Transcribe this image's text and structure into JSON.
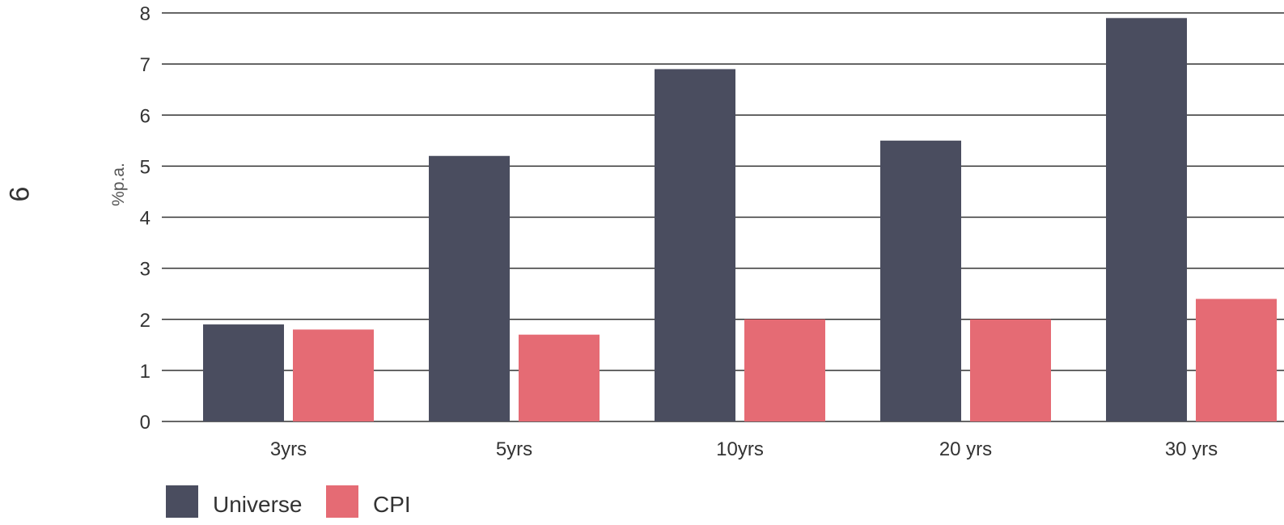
{
  "page_number": "9",
  "chart_data": {
    "type": "bar",
    "categories": [
      "3yrs",
      "5yrs",
      "10yrs",
      "20 yrs",
      "30 yrs"
    ],
    "series": [
      {
        "name": "Universe",
        "values": [
          1.9,
          5.2,
          6.9,
          5.5,
          7.9
        ]
      },
      {
        "name": "CPI",
        "values": [
          1.8,
          1.7,
          2.0,
          2.0,
          2.4
        ]
      }
    ],
    "xlabel": "",
    "ylabel": "%p.a.",
    "ylim": [
      0,
      8
    ],
    "yticks": [
      "0",
      "1",
      "2",
      "3",
      "4",
      "5",
      "6",
      "7",
      "8"
    ],
    "grid": true,
    "legend_position": "bottom-left",
    "colors": {
      "Universe": "#4a4d5f",
      "CPI": "#e56b74",
      "grid": "#333333"
    }
  }
}
